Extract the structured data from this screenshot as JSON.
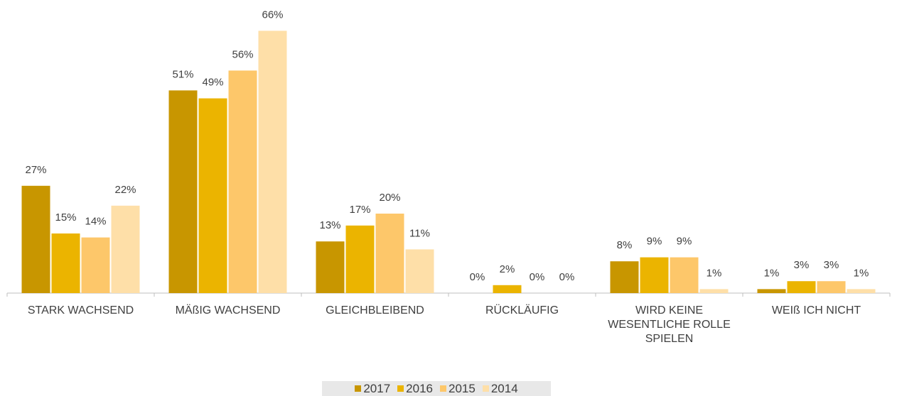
{
  "chart_data": {
    "type": "bar",
    "categories": [
      "STARK WACHSEND",
      "MÄßIG WACHSEND",
      "GLEICHBLEIBEND",
      "RÜCKLÄUFIG",
      "WIRD KEINE WESENTLICHE ROLLE SPIELEN",
      "WEIß ICH NICHT"
    ],
    "series": [
      {
        "name": "2017",
        "color": "#c89600",
        "values": [
          27,
          51,
          13,
          0,
          8,
          1
        ],
        "value_labels": [
          "27%",
          "51%",
          "13%",
          "0%",
          "8%",
          "1%"
        ]
      },
      {
        "name": "2016",
        "color": "#ebb400",
        "values": [
          15,
          49,
          17,
          2,
          9,
          3
        ],
        "value_labels": [
          "15%",
          "49%",
          "17%",
          "2%",
          "9%",
          "3%"
        ]
      },
      {
        "name": "2015",
        "color": "#fdc76a",
        "values": [
          14,
          56,
          20,
          0,
          9,
          3
        ],
        "value_labels": [
          "14%",
          "56%",
          "20%",
          "0%",
          "9%",
          "3%"
        ]
      },
      {
        "name": "2014",
        "color": "#fedfa8",
        "values": [
          22,
          66,
          11,
          0,
          1,
          1
        ],
        "value_labels": [
          "22%",
          "66%",
          "11%",
          "0%",
          "1%",
          "1%"
        ]
      }
    ],
    "legend": "bottom"
  }
}
